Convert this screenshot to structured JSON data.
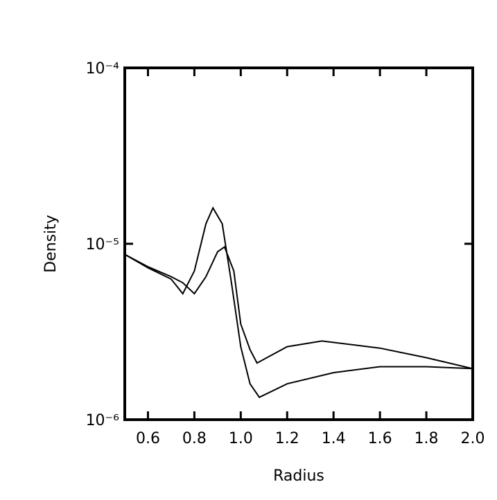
{
  "chart_data": {
    "type": "line",
    "xlabel": "Radius",
    "ylabel": "Density",
    "xlim": [
      0.5,
      2.0
    ],
    "xticks": [
      0.6,
      0.8,
      {
        "value": 1.0,
        "label": "1.0"
      },
      1.2,
      1.4,
      1.6,
      1.8,
      {
        "value": 2.0,
        "label": "2.0"
      }
    ],
    "ylim": [
      1e-06,
      0.0001
    ],
    "yscale": "log",
    "yticks": [
      {
        "value": 1e-06,
        "label": "10⁻⁶"
      },
      {
        "value": 1e-05,
        "label": "10⁻⁵"
      },
      {
        "value": 0.0001,
        "label": "10⁻⁴"
      }
    ],
    "series": [
      {
        "color": "#000000",
        "x": [
          0.5,
          0.6,
          0.7,
          0.75,
          0.8,
          0.85,
          0.88,
          0.92,
          0.96,
          1.0,
          1.04,
          1.08,
          1.2,
          1.4,
          1.6,
          1.8,
          2.0
        ],
        "values": [
          8.7e-06,
          7.3e-06,
          6.3e-06,
          5.2e-06,
          7e-06,
          1.3e-05,
          1.6e-05,
          1.3e-05,
          6e-06,
          2.6e-06,
          1.6e-06,
          1.34e-06,
          1.6e-06,
          1.85e-06,
          2e-06,
          2e-06,
          1.95e-06
        ]
      },
      {
        "color": "#000000",
        "x": [
          0.5,
          0.6,
          0.7,
          0.75,
          0.8,
          0.85,
          0.9,
          0.93,
          0.97,
          1.0,
          1.04,
          1.07,
          1.2,
          1.35,
          1.6,
          1.8,
          2.0
        ],
        "values": [
          8.7e-06,
          7.4e-06,
          6.5e-06,
          6e-06,
          5.2e-06,
          6.5e-06,
          9e-06,
          9.6e-06,
          7e-06,
          3.5e-06,
          2.5e-06,
          2.1e-06,
          2.6e-06,
          2.8e-06,
          2.55e-06,
          2.25e-06,
          1.95e-06
        ]
      }
    ]
  }
}
